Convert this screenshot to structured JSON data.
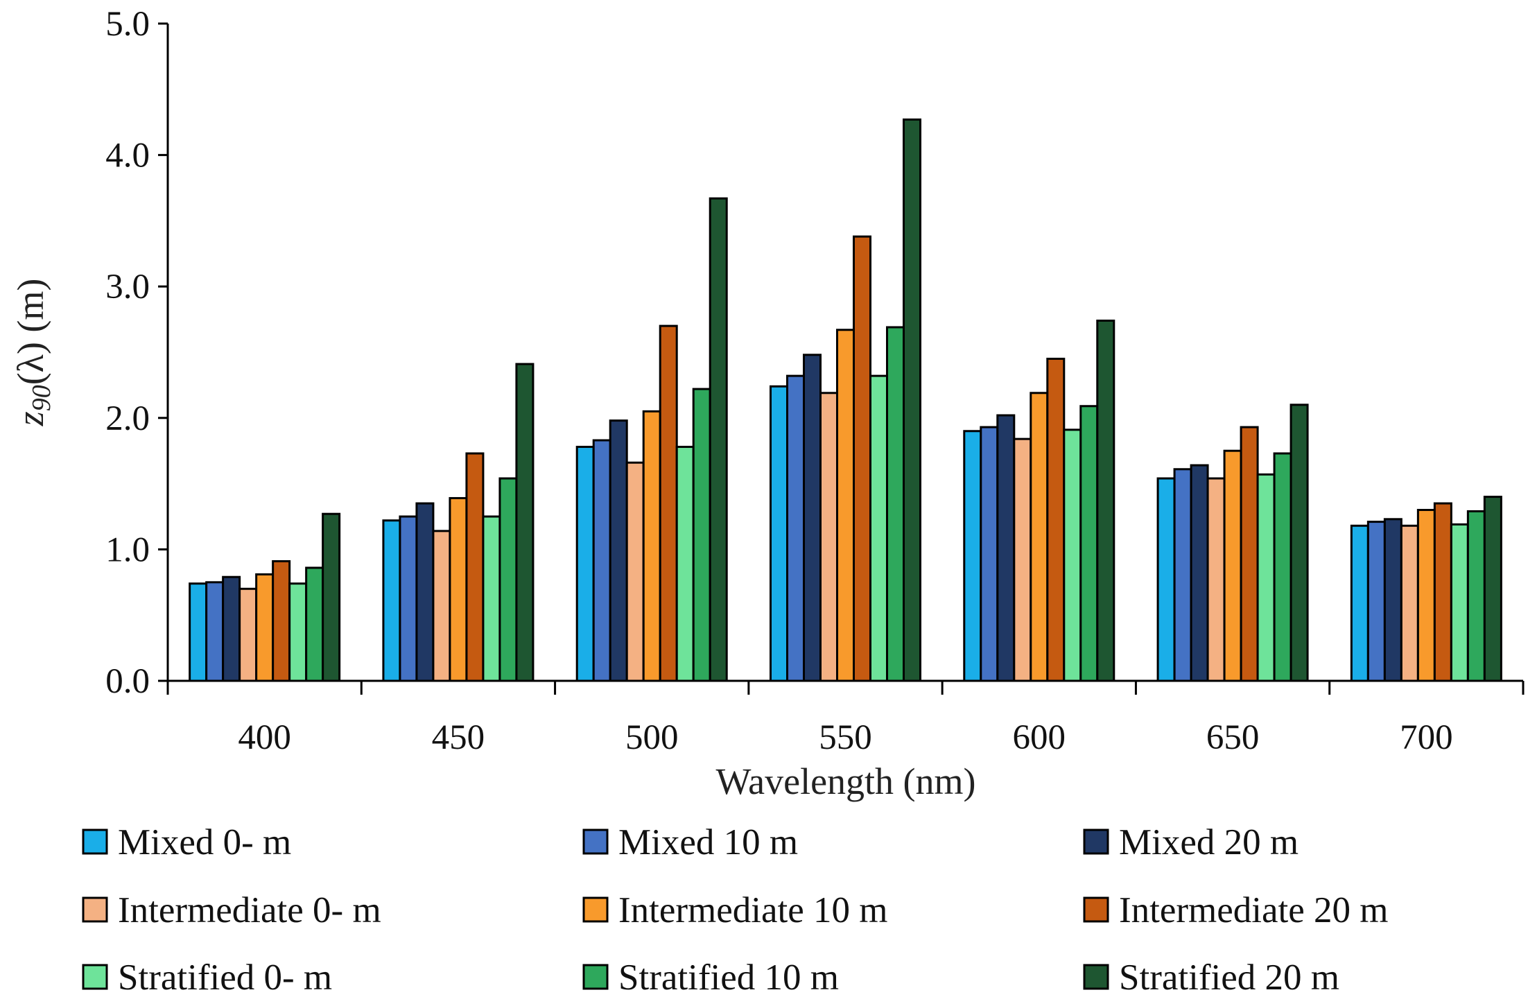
{
  "chart_data": {
    "type": "bar",
    "xlabel": "Wavelength (nm)",
    "ylabel_main": "z",
    "ylabel_sub": "90",
    "ylabel_rest": "(λ) (m)",
    "ylim": [
      0,
      5
    ],
    "yticks": [
      "0.0",
      "1.0",
      "2.0",
      "3.0",
      "4.0",
      "5.0"
    ],
    "grid": false,
    "legend_placement": "bottom",
    "categories": [
      "400",
      "450",
      "500",
      "550",
      "600",
      "650",
      "700"
    ],
    "series": [
      {
        "name": "Mixed 0- m",
        "color": "#1aaee8",
        "values": [
          0.74,
          1.22,
          1.78,
          2.24,
          1.9,
          1.54,
          1.18
        ]
      },
      {
        "name": "Mixed 10 m",
        "color": "#4472c4",
        "values": [
          0.75,
          1.25,
          1.83,
          2.32,
          1.93,
          1.61,
          1.21
        ]
      },
      {
        "name": "Mixed 20 m",
        "color": "#203864",
        "values": [
          0.79,
          1.35,
          1.98,
          2.48,
          2.02,
          1.64,
          1.23
        ]
      },
      {
        "name": "Intermediate 0- m",
        "color": "#f4b183",
        "values": [
          0.7,
          1.14,
          1.66,
          2.19,
          1.84,
          1.54,
          1.18
        ]
      },
      {
        "name": "Intermediate 10 m",
        "color": "#f89a2c",
        "values": [
          0.81,
          1.39,
          2.05,
          2.67,
          2.19,
          1.75,
          1.3
        ]
      },
      {
        "name": "Intermediate 20 m",
        "color": "#c55a11",
        "values": [
          0.91,
          1.73,
          2.7,
          3.38,
          2.45,
          1.93,
          1.35
        ]
      },
      {
        "name": "Stratified 0- m",
        "color": "#6ee39a",
        "values": [
          0.74,
          1.25,
          1.78,
          2.32,
          1.91,
          1.57,
          1.19
        ]
      },
      {
        "name": "Stratified 10 m",
        "color": "#2ea85c",
        "values": [
          0.86,
          1.54,
          2.22,
          2.69,
          2.09,
          1.73,
          1.29
        ]
      },
      {
        "name": "Stratified 20 m",
        "color": "#1e5631",
        "values": [
          1.27,
          2.41,
          3.67,
          4.27,
          2.74,
          2.1,
          1.4
        ]
      }
    ]
  }
}
